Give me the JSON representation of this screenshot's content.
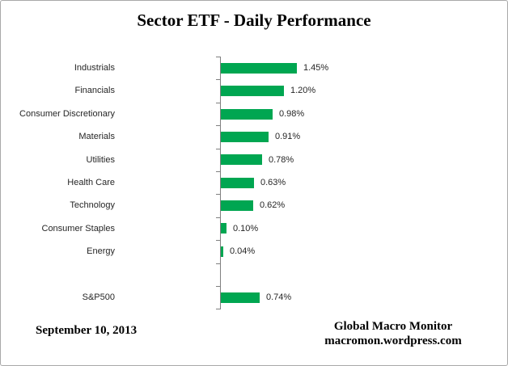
{
  "title": "Sector ETF - Daily Performance",
  "footer": {
    "date": "September 10, 2013",
    "source_name": "Global Macro Monitor",
    "source_url": "macromon.wordpress.com"
  },
  "colors": {
    "bar_green": "#00A651",
    "axis_gray": "#808080",
    "label_text": "#262626",
    "frame_border": "#a8a8a8"
  },
  "chart_data": {
    "type": "bar",
    "orientation": "horizontal",
    "title": "Sector ETF - Daily Performance",
    "categories": [
      "Industrials",
      "Financials",
      "Consumer Discretionary",
      "Materials",
      "Utilities",
      "Health Care",
      "Technology",
      "Consumer Staples",
      "Energy",
      "",
      "S&P500"
    ],
    "values": [
      1.45,
      1.2,
      0.98,
      0.91,
      0.78,
      0.63,
      0.62,
      0.1,
      0.04,
      null,
      0.74
    ],
    "value_labels": [
      "1.45%",
      "1.20%",
      "0.98%",
      "0.91%",
      "0.78%",
      "0.63%",
      "0.62%",
      "0.10%",
      "0.04%",
      "",
      "0.74%"
    ],
    "xlabel": "",
    "ylabel": "",
    "xlim": [
      0,
      2.0
    ],
    "grid": false,
    "legend": false,
    "bar_color": "#00A651"
  }
}
